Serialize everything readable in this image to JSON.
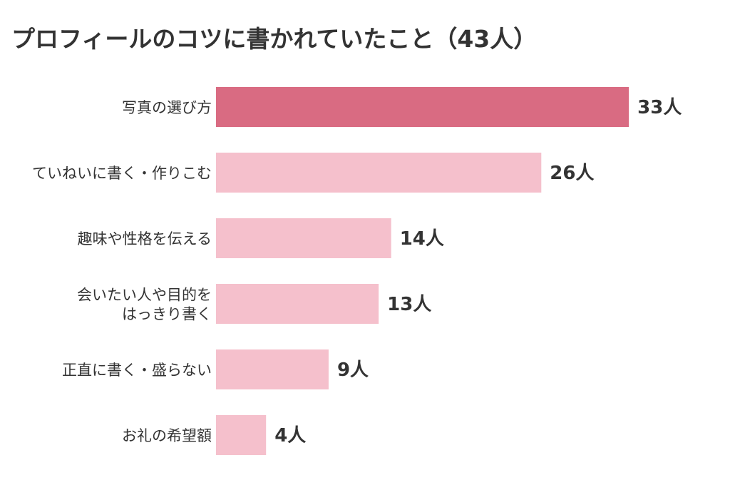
{
  "chart_data": {
    "type": "bar",
    "orientation": "horizontal",
    "title": "プロフィールのコツに書かれていたこと（43人）",
    "unit": "人",
    "categories": [
      "写真の選び方",
      "ていねいに書く・作りこむ",
      "趣味や性格を伝える",
      "会いたい人や目的をはっきり書く",
      "正直に書く・盛らない",
      "お礼の希望額"
    ],
    "category_lines": [
      [
        "写真の選び方"
      ],
      [
        "ていねいに書く・作りこむ"
      ],
      [
        "趣味や性格を伝える"
      ],
      [
        "会いたい人や目的を",
        "はっきり書く"
      ],
      [
        "正直に書く・盛らない"
      ],
      [
        "お礼の希望額"
      ]
    ],
    "values": [
      33,
      26,
      14,
      13,
      9,
      4
    ],
    "value_labels": [
      "33人",
      "26人",
      "14人",
      "13人",
      "9人",
      "4人"
    ],
    "highlight_color": "#d96b82",
    "bar_color": "#f5c0cc",
    "text_color": "#333333",
    "grid": false,
    "legend": "none"
  }
}
